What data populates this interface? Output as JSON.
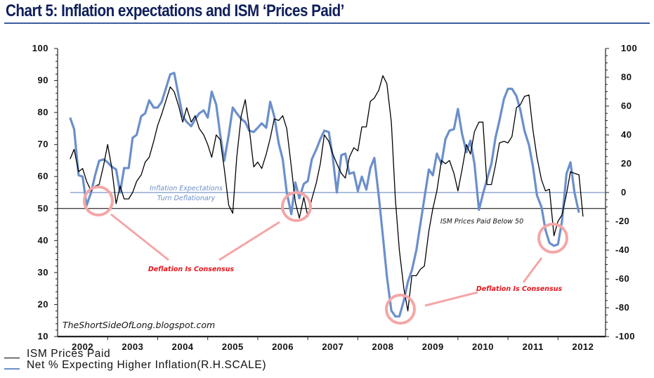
{
  "title": "Chart 5: Inflation expectations and ISM ‘Prices Paid’",
  "colors": {
    "title": "#0f1f5c",
    "title_rule": "#3e5da0",
    "ism_line": "#000000",
    "expectations_line": "#6b8fcb",
    "expectations_reference": "#5a7bb8",
    "highlight_circle": "#f4a6a6",
    "consensus_text": "#e8141b",
    "deflationary_text": "#6b8fcb"
  },
  "legend": [
    {
      "label": "ISM Prices Paid",
      "series": "ism"
    },
    {
      "label": "Net % Expecting Higher Inflation(R.H.SCALE)",
      "series": "expectations"
    }
  ],
  "watermark": "TheShortSideOfLong.blogspot.com",
  "annotations": {
    "deflationary_line1": "Inflation Expectations",
    "deflationary_line2": "Turn Deflationary",
    "ism_below_50": "ISM Prices Paid Below 50",
    "consensus_left": "Deflation Is Consensus",
    "consensus_right": "Deflation Is Consensus"
  },
  "chart_data": {
    "type": "line",
    "title": "Chart 5: Inflation expectations and ISM ‘Prices Paid’",
    "xlabel": "",
    "x_range": [
      2002.0,
      2012.95
    ],
    "x_tick_labels": [
      "2002",
      "2003",
      "2004",
      "2005",
      "2006",
      "2007",
      "2008",
      "2009",
      "2010",
      "2011",
      "2012"
    ],
    "left_axis": {
      "label": "ISM Prices Paid",
      "range": [
        10,
        100
      ],
      "ticks": [
        10,
        20,
        30,
        40,
        50,
        60,
        70,
        80,
        90,
        100
      ],
      "reference_line": 50
    },
    "right_axis": {
      "label": "Net % Expecting Higher Inflation (R.H. Scale)",
      "range": [
        -100,
        100
      ],
      "ticks": [
        -100,
        -80,
        -60,
        -40,
        -20,
        0,
        20,
        40,
        60,
        80,
        100
      ],
      "reference_line": 0
    },
    "grid": false,
    "legend_position": "bottom-left",
    "series": [
      {
        "name": "ISM Prices Paid",
        "axis": "left",
        "points": [
          [
            2002.25,
            65.5
          ],
          [
            2002.33,
            68.5
          ],
          [
            2002.42,
            61.5
          ],
          [
            2002.5,
            62.5
          ],
          [
            2002.58,
            58.5
          ],
          [
            2002.67,
            55.5
          ],
          [
            2002.75,
            57.0
          ],
          [
            2002.83,
            57.5
          ],
          [
            2002.92,
            63.5
          ],
          [
            2003.0,
            70.0
          ],
          [
            2003.08,
            63.0
          ],
          [
            2003.17,
            51.5
          ],
          [
            2003.25,
            57.0
          ],
          [
            2003.33,
            53.0
          ],
          [
            2003.42,
            53.0
          ],
          [
            2003.5,
            55.0
          ],
          [
            2003.58,
            58.5
          ],
          [
            2003.67,
            60.5
          ],
          [
            2003.75,
            64.5
          ],
          [
            2003.83,
            66.0
          ],
          [
            2003.92,
            71.0
          ],
          [
            2004.0,
            76.0
          ],
          [
            2004.08,
            79.5
          ],
          [
            2004.17,
            84.0
          ],
          [
            2004.25,
            88.0
          ],
          [
            2004.33,
            86.5
          ],
          [
            2004.42,
            82.0
          ],
          [
            2004.5,
            77.0
          ],
          [
            2004.58,
            81.5
          ],
          [
            2004.67,
            77.0
          ],
          [
            2004.75,
            79.0
          ],
          [
            2004.83,
            75.0
          ],
          [
            2004.92,
            73.0
          ],
          [
            2005.0,
            70.0
          ],
          [
            2005.08,
            66.0
          ],
          [
            2005.17,
            73.0
          ],
          [
            2005.25,
            71.5
          ],
          [
            2005.33,
            62.5
          ],
          [
            2005.42,
            51.0
          ],
          [
            2005.5,
            48.5
          ],
          [
            2005.58,
            66.0
          ],
          [
            2005.67,
            79.0
          ],
          [
            2005.75,
            84.0
          ],
          [
            2005.83,
            75.0
          ],
          [
            2005.92,
            63.0
          ],
          [
            2006.0,
            64.5
          ],
          [
            2006.08,
            62.5
          ],
          [
            2006.17,
            67.0
          ],
          [
            2006.25,
            72.0
          ],
          [
            2006.33,
            78.0
          ],
          [
            2006.42,
            77.5
          ],
          [
            2006.5,
            79.0
          ],
          [
            2006.58,
            75.0
          ],
          [
            2006.67,
            63.0
          ],
          [
            2006.75,
            52.0
          ],
          [
            2006.83,
            47.0
          ],
          [
            2006.92,
            53.5
          ],
          [
            2007.0,
            47.5
          ],
          [
            2007.08,
            53.0
          ],
          [
            2007.17,
            58.0
          ],
          [
            2007.25,
            64.0
          ],
          [
            2007.33,
            73.0
          ],
          [
            2007.42,
            71.0
          ],
          [
            2007.5,
            67.0
          ],
          [
            2007.58,
            64.0
          ],
          [
            2007.67,
            61.0
          ],
          [
            2007.75,
            59.5
          ],
          [
            2007.83,
            66.0
          ],
          [
            2007.92,
            69.0
          ],
          [
            2008.0,
            68.0
          ],
          [
            2008.08,
            75.5
          ],
          [
            2008.17,
            75.5
          ],
          [
            2008.25,
            83.5
          ],
          [
            2008.33,
            84.5
          ],
          [
            2008.42,
            87.0
          ],
          [
            2008.5,
            91.5
          ],
          [
            2008.58,
            89.0
          ],
          [
            2008.67,
            77.0
          ],
          [
            2008.75,
            53.0
          ],
          [
            2008.83,
            37.0
          ],
          [
            2008.92,
            25.0
          ],
          [
            2009.0,
            18.0
          ],
          [
            2009.08,
            29.0
          ],
          [
            2009.17,
            29.0
          ],
          [
            2009.25,
            31.0
          ],
          [
            2009.33,
            32.0
          ],
          [
            2009.42,
            43.0
          ],
          [
            2009.5,
            50.0
          ],
          [
            2009.58,
            55.5
          ],
          [
            2009.67,
            65.0
          ],
          [
            2009.75,
            64.0
          ],
          [
            2009.83,
            65.0
          ],
          [
            2009.92,
            61.0
          ],
          [
            2010.0,
            55.5
          ],
          [
            2010.08,
            62.0
          ],
          [
            2010.17,
            70.0
          ],
          [
            2010.25,
            67.0
          ],
          [
            2010.33,
            74.0
          ],
          [
            2010.42,
            77.0
          ],
          [
            2010.5,
            77.0
          ],
          [
            2010.58,
            57.5
          ],
          [
            2010.67,
            57.5
          ],
          [
            2010.75,
            63.5
          ],
          [
            2010.83,
            70.5
          ],
          [
            2010.92,
            71.0
          ],
          [
            2011.0,
            70.5
          ],
          [
            2011.08,
            72.5
          ],
          [
            2011.17,
            81.5
          ],
          [
            2011.25,
            82.5
          ],
          [
            2011.33,
            85.0
          ],
          [
            2011.42,
            85.5
          ],
          [
            2011.5,
            74.5
          ],
          [
            2011.58,
            66.0
          ],
          [
            2011.67,
            59.0
          ],
          [
            2011.75,
            55.5
          ],
          [
            2011.83,
            56.0
          ],
          [
            2011.92,
            41.5
          ],
          [
            2012.0,
            46.0
          ],
          [
            2012.08,
            48.0
          ],
          [
            2012.17,
            54.5
          ],
          [
            2012.25,
            61.5
          ],
          [
            2012.33,
            61.0
          ],
          [
            2012.42,
            60.5
          ],
          [
            2012.5,
            47.5
          ]
        ]
      },
      {
        "name": "Net % Expecting Higher Inflation (R.H. Scale)",
        "axis": "right",
        "points": [
          [
            2002.25,
            52.0
          ],
          [
            2002.33,
            44.0
          ],
          [
            2002.42,
            12.0
          ],
          [
            2002.5,
            11.0
          ],
          [
            2002.58,
            -9.0
          ],
          [
            2002.67,
            0.0
          ],
          [
            2002.75,
            12.0
          ],
          [
            2002.83,
            22.0
          ],
          [
            2002.92,
            23.0
          ],
          [
            2003.0,
            21.0
          ],
          [
            2003.08,
            18.0
          ],
          [
            2003.17,
            16.0
          ],
          [
            2003.25,
            0.0
          ],
          [
            2003.33,
            17.0
          ],
          [
            2003.42,
            17.0
          ],
          [
            2003.5,
            38.0
          ],
          [
            2003.58,
            40.0
          ],
          [
            2003.67,
            53.0
          ],
          [
            2003.75,
            55.0
          ],
          [
            2003.83,
            64.0
          ],
          [
            2003.92,
            59.0
          ],
          [
            2004.0,
            59.0
          ],
          [
            2004.08,
            63.0
          ],
          [
            2004.17,
            73.0
          ],
          [
            2004.25,
            82.0
          ],
          [
            2004.33,
            83.0
          ],
          [
            2004.42,
            67.0
          ],
          [
            2004.5,
            53.0
          ],
          [
            2004.58,
            49.0
          ],
          [
            2004.67,
            46.0
          ],
          [
            2004.75,
            51.0
          ],
          [
            2004.83,
            55.0
          ],
          [
            2004.92,
            57.0
          ],
          [
            2005.0,
            52.0
          ],
          [
            2005.08,
            70.0
          ],
          [
            2005.17,
            61.0
          ],
          [
            2005.25,
            40.0
          ],
          [
            2005.33,
            22.0
          ],
          [
            2005.42,
            40.0
          ],
          [
            2005.5,
            59.0
          ],
          [
            2005.58,
            55.0
          ],
          [
            2005.67,
            51.0
          ],
          [
            2005.75,
            49.0
          ],
          [
            2005.83,
            43.0
          ],
          [
            2005.92,
            42.0
          ],
          [
            2006.0,
            45.0
          ],
          [
            2006.08,
            48.0
          ],
          [
            2006.17,
            45.0
          ],
          [
            2006.25,
            63.0
          ],
          [
            2006.33,
            53.0
          ],
          [
            2006.42,
            34.0
          ],
          [
            2006.5,
            23.0
          ],
          [
            2006.58,
            0.0
          ],
          [
            2006.67,
            -15.0
          ],
          [
            2006.75,
            7.0
          ],
          [
            2006.83,
            -4.0
          ],
          [
            2006.92,
            6.0
          ],
          [
            2007.0,
            8.0
          ],
          [
            2007.08,
            23.0
          ],
          [
            2007.17,
            30.0
          ],
          [
            2007.25,
            37.0
          ],
          [
            2007.33,
            43.0
          ],
          [
            2007.42,
            42.0
          ],
          [
            2007.5,
            24.0
          ],
          [
            2007.58,
            0.0
          ],
          [
            2007.67,
            26.0
          ],
          [
            2007.75,
            27.0
          ],
          [
            2007.83,
            13.0
          ],
          [
            2007.92,
            14.0
          ],
          [
            2008.0,
            1.0
          ],
          [
            2008.08,
            11.0
          ],
          [
            2008.17,
            2.0
          ],
          [
            2008.25,
            17.0
          ],
          [
            2008.33,
            24.0
          ],
          [
            2008.42,
            -3.0
          ],
          [
            2008.5,
            -30.0
          ],
          [
            2008.58,
            -58.0
          ],
          [
            2008.67,
            -82.0
          ],
          [
            2008.75,
            -86.0
          ],
          [
            2008.83,
            -86.0
          ],
          [
            2008.92,
            -75.0
          ],
          [
            2009.0,
            -62.0
          ],
          [
            2009.08,
            -54.0
          ],
          [
            2009.17,
            -40.0
          ],
          [
            2009.25,
            -22.0
          ],
          [
            2009.33,
            -4.0
          ],
          [
            2009.42,
            16.0
          ],
          [
            2009.5,
            12.0
          ],
          [
            2009.58,
            27.0
          ],
          [
            2009.67,
            20.0
          ],
          [
            2009.75,
            37.0
          ],
          [
            2009.83,
            43.0
          ],
          [
            2009.92,
            44.0
          ],
          [
            2010.0,
            58.0
          ],
          [
            2010.08,
            41.0
          ],
          [
            2010.17,
            28.0
          ],
          [
            2010.25,
            36.0
          ],
          [
            2010.33,
            20.0
          ],
          [
            2010.42,
            -12.0
          ],
          [
            2010.5,
            -1.0
          ],
          [
            2010.58,
            9.0
          ],
          [
            2010.67,
            20.0
          ],
          [
            2010.75,
            38.0
          ],
          [
            2010.83,
            50.0
          ],
          [
            2010.92,
            65.0
          ],
          [
            2011.0,
            72.0
          ],
          [
            2011.08,
            72.0
          ],
          [
            2011.17,
            67.0
          ],
          [
            2011.25,
            57.0
          ],
          [
            2011.33,
            43.0
          ],
          [
            2011.42,
            33.0
          ],
          [
            2011.5,
            18.0
          ],
          [
            2011.58,
            -2.0
          ],
          [
            2011.67,
            -10.0
          ],
          [
            2011.75,
            -26.0
          ],
          [
            2011.83,
            -35.0
          ],
          [
            2011.92,
            -37.0
          ],
          [
            2012.0,
            -36.0
          ],
          [
            2012.08,
            -20.0
          ],
          [
            2012.17,
            13.0
          ],
          [
            2012.25,
            21.0
          ],
          [
            2012.33,
            0.0
          ],
          [
            2012.42,
            -14.0
          ]
        ]
      }
    ],
    "annotations": [
      {
        "text": "Inflation Expectations Turn Deflationary",
        "near_axis": "right",
        "value": 0
      },
      {
        "text": "ISM Prices Paid Below 50",
        "near_axis": "left",
        "value": 50
      },
      {
        "text": "Deflation Is Consensus",
        "highlights": [
          2002.6,
          2006.7
        ]
      },
      {
        "text": "Deflation Is Consensus",
        "highlights": [
          2008.8,
          2011.95
        ]
      }
    ]
  }
}
